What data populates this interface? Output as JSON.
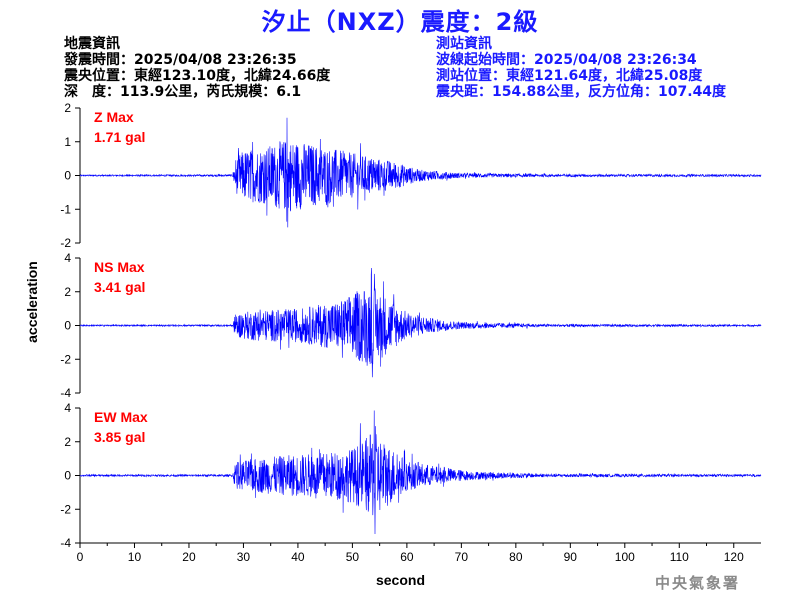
{
  "header": {
    "title": "汐止（NXZ）震度：2級"
  },
  "quake_info": {
    "heading": "地震資訊",
    "origin_time": "發震時間：2025/04/08 23:26:35",
    "epicenter": "震央位置：東經123.10度，北緯24.66度",
    "depth_magnitude": "深　度：113.9公里，芮氏規模：6.1"
  },
  "station_info": {
    "heading": "測站資訊",
    "arrival_time": "波線起始時間：2025/04/08 23:26:34",
    "location": "測站位置：東經121.64度，北緯25.08度",
    "distance_azimuth": "震央距：154.88公里，反方位角：107.44度"
  },
  "watermark": "中央氣象署",
  "colors": {
    "trace": "#0000ff",
    "label": "#ff0000",
    "title": "#1a1aff",
    "axis": "#000000"
  },
  "chart_data": {
    "type": "line",
    "xlabel": "second",
    "ylabel": "acceleration",
    "xlim": [
      0,
      125
    ],
    "xticks": [
      "0",
      "10",
      "20",
      "30",
      "40",
      "50",
      "60",
      "70",
      "80",
      "90",
      "100",
      "110",
      "120"
    ],
    "grid": false,
    "panels": [
      {
        "name": "Z",
        "label": "Z Max",
        "value": "1.71 gal",
        "max": 1.71,
        "ylim": [
          -2,
          2
        ],
        "yticks": [
          "2",
          "1",
          "0",
          "-1",
          "-2"
        ],
        "p_arrival": 28.5,
        "peak_time": 38.0,
        "envelope": [
          [
            0,
            0.02
          ],
          [
            28,
            0.03
          ],
          [
            28.5,
            0.5
          ],
          [
            30,
            0.75
          ],
          [
            34,
            0.85
          ],
          [
            38,
            1.1
          ],
          [
            45,
            0.85
          ],
          [
            52,
            0.6
          ],
          [
            58,
            0.4
          ],
          [
            62,
            0.18
          ],
          [
            70,
            0.07
          ],
          [
            85,
            0.04
          ],
          [
            125,
            0.03
          ]
        ]
      },
      {
        "name": "NS",
        "label": "NS Max",
        "value": "3.41 gal",
        "max": 3.41,
        "ylim": [
          -4,
          4
        ],
        "yticks": [
          "4",
          "2",
          "0",
          "-2",
          "-4"
        ],
        "p_arrival": 28.5,
        "peak_time": 53.5,
        "envelope": [
          [
            0,
            0.04
          ],
          [
            28,
            0.05
          ],
          [
            28.5,
            0.7
          ],
          [
            32,
            0.9
          ],
          [
            40,
            1.0
          ],
          [
            48,
            1.5
          ],
          [
            53,
            2.5
          ],
          [
            56,
            1.8
          ],
          [
            60,
            0.8
          ],
          [
            65,
            0.4
          ],
          [
            70,
            0.2
          ],
          [
            85,
            0.08
          ],
          [
            125,
            0.05
          ]
        ]
      },
      {
        "name": "EW",
        "label": "EW Max",
        "value": "3.85 gal",
        "max": 3.85,
        "ylim": [
          -4,
          4
        ],
        "yticks": [
          "4",
          "2",
          "0",
          "-2",
          "-4"
        ],
        "p_arrival": 28.5,
        "peak_time": 54.0,
        "envelope": [
          [
            0,
            0.05
          ],
          [
            28,
            0.06
          ],
          [
            28.5,
            0.8
          ],
          [
            32,
            1.0
          ],
          [
            38,
            1.2
          ],
          [
            46,
            1.4
          ],
          [
            50,
            1.6
          ],
          [
            54,
            2.6
          ],
          [
            57,
            1.7
          ],
          [
            60,
            0.9
          ],
          [
            66,
            0.5
          ],
          [
            72,
            0.25
          ],
          [
            85,
            0.1
          ],
          [
            125,
            0.06
          ]
        ]
      }
    ]
  }
}
